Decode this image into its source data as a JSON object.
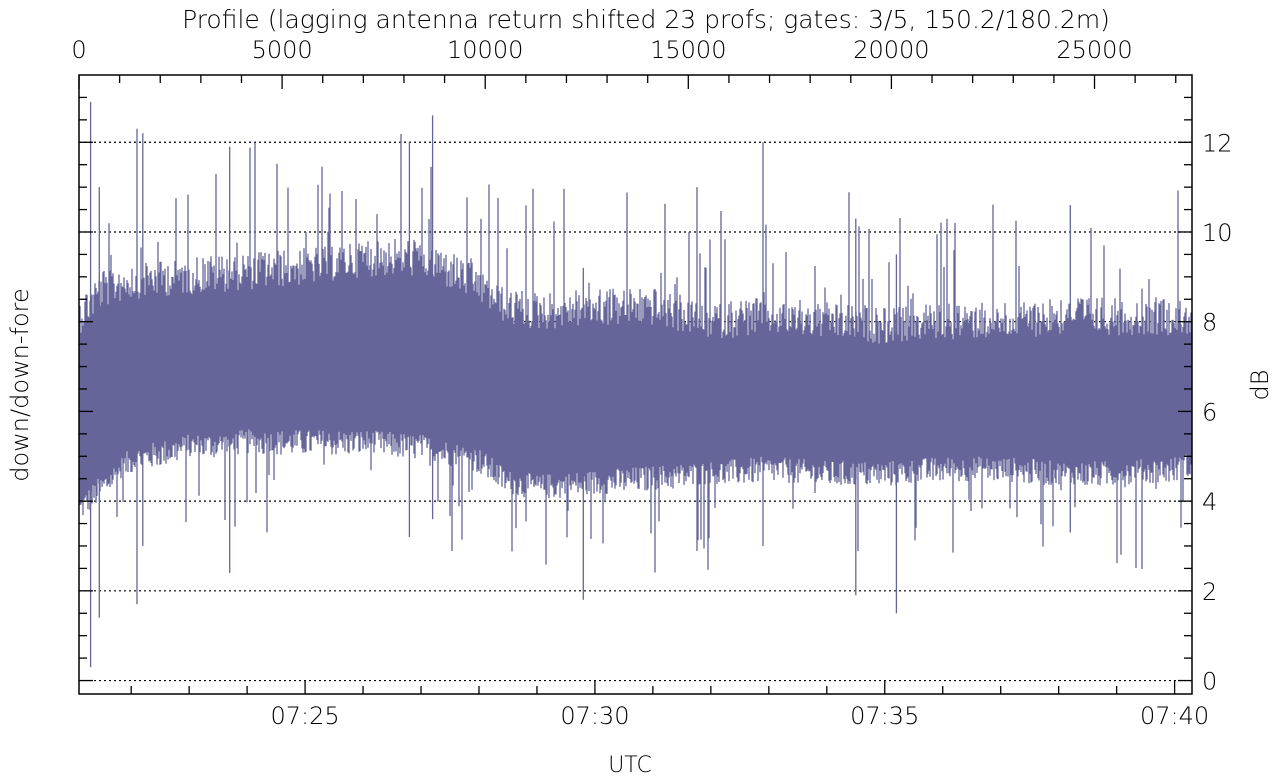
{
  "chart_data": {
    "type": "area",
    "title": "Profile (lagging antenna return shifted 23 profs; gates: 3/5, 150.2/180.2m)",
    "xlabel": "UTC",
    "ylabel_left": "down/down-fore",
    "ylabel_right": "dB",
    "x_bottom_ticks": [
      "07:25",
      "07:30",
      "07:35",
      "07:40"
    ],
    "x_bottom_tick_minutes": [
      25,
      30,
      35,
      40
    ],
    "x_bottom_range_minutes": [
      21.1,
      40.3
    ],
    "x_top_ticks": [
      "0",
      "5000",
      "10000",
      "15000",
      "20000",
      "25000"
    ],
    "x_top_tick_values": [
      0,
      5000,
      10000,
      15000,
      20000,
      25000
    ],
    "x_top_range": [
      0,
      27400
    ],
    "y_ticks": [
      "0",
      "2",
      "4",
      "6",
      "8",
      "10",
      "12"
    ],
    "y_tick_values": [
      0,
      2,
      4,
      6,
      8,
      10,
      12
    ],
    "ylim": [
      -0.3,
      13.5
    ],
    "grid": "dotted horizontal at even dB",
    "series_color": "#65659a",
    "envelope": {
      "x_minutes": [
        21.1,
        21.5,
        22,
        23,
        24,
        25,
        26,
        27,
        28,
        28.5,
        29,
        30,
        31,
        32,
        33,
        34,
        35,
        36,
        37,
        38,
        39,
        40,
        40.3
      ],
      "lower": [
        3.5,
        4.0,
        4.6,
        4.9,
        5.0,
        5.0,
        5.0,
        4.9,
        4.6,
        4.1,
        4.0,
        4.1,
        4.2,
        4.3,
        4.4,
        4.3,
        4.3,
        4.4,
        4.4,
        4.3,
        4.3,
        4.4,
        4.5
      ],
      "upper": [
        8.6,
        9.2,
        9.4,
        9.5,
        9.6,
        9.7,
        9.9,
        9.9,
        9.3,
        8.8,
        8.7,
        8.8,
        8.8,
        8.5,
        8.6,
        8.5,
        8.4,
        8.5,
        8.5,
        8.6,
        8.6,
        8.6,
        8.6
      ],
      "spike_max": 12.6,
      "spike_min": 0.3
    }
  }
}
